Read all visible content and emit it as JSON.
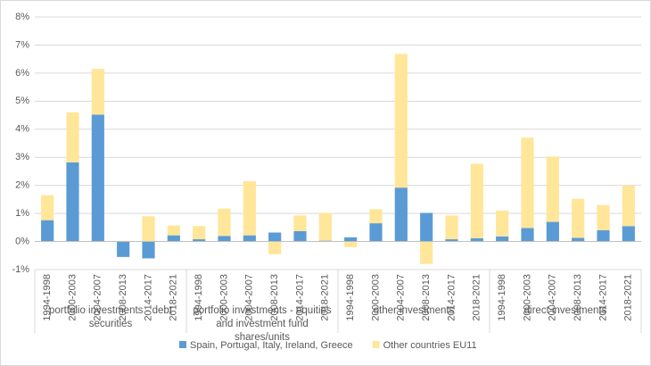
{
  "chart_data": {
    "type": "stacked_bar",
    "categories": [
      "1994-1998",
      "2000-2003",
      "2004-2007",
      "2008-2013",
      "2014-2017",
      "2018-2021",
      "1994-1998",
      "2000-2003",
      "2004-2007",
      "2008-2013",
      "2014-2017",
      "2018-2021",
      "1994-1998",
      "2000-2003",
      "2004-2007",
      "2008-2013",
      "2014-2017",
      "2018-2021",
      "1994-1998",
      "2000-2003",
      "2004-2007",
      "2008-2013",
      "2014-2017",
      "2018-2021"
    ],
    "groups": [
      "portfolio investments - debt securities",
      "portfolio investments - equities and investment fund shares/units",
      "other investments",
      "direct investments"
    ],
    "series": [
      {
        "name": "Spain, Portugal, Italy, Ireland, Greece",
        "color": "#5b9bd5",
        "values": [
          0.76,
          2.82,
          4.52,
          -0.55,
          -0.6,
          0.22,
          0.08,
          0.2,
          0.22,
          0.32,
          0.37,
          0.03,
          0.15,
          0.65,
          1.92,
          1.02,
          0.08,
          0.12,
          0.18,
          0.48,
          0.7,
          0.13,
          0.4,
          0.55
        ]
      },
      {
        "name": "Other countries EU11",
        "color": "#ffe699",
        "values": [
          0.89,
          1.78,
          1.63,
          0.03,
          0.9,
          0.35,
          0.47,
          0.97,
          1.93,
          -0.45,
          0.56,
          0.99,
          -0.2,
          0.5,
          4.76,
          -0.8,
          0.85,
          2.65,
          0.92,
          3.22,
          2.33,
          1.39,
          0.9,
          1.45
        ]
      }
    ],
    "ylim": [
      -1,
      8
    ],
    "yticks": [
      {
        "value": -1,
        "label": "-1%"
      },
      {
        "value": 0,
        "label": "0%"
      },
      {
        "value": 1,
        "label": "1%"
      },
      {
        "value": 2,
        "label": "2%"
      },
      {
        "value": 3,
        "label": "3%"
      },
      {
        "value": 4,
        "label": "4%"
      },
      {
        "value": 5,
        "label": "5%"
      },
      {
        "value": 6,
        "label": "6%"
      },
      {
        "value": 7,
        "label": "7%"
      },
      {
        "value": 8,
        "label": "8%"
      }
    ],
    "grid": true,
    "legend": "bottom"
  }
}
